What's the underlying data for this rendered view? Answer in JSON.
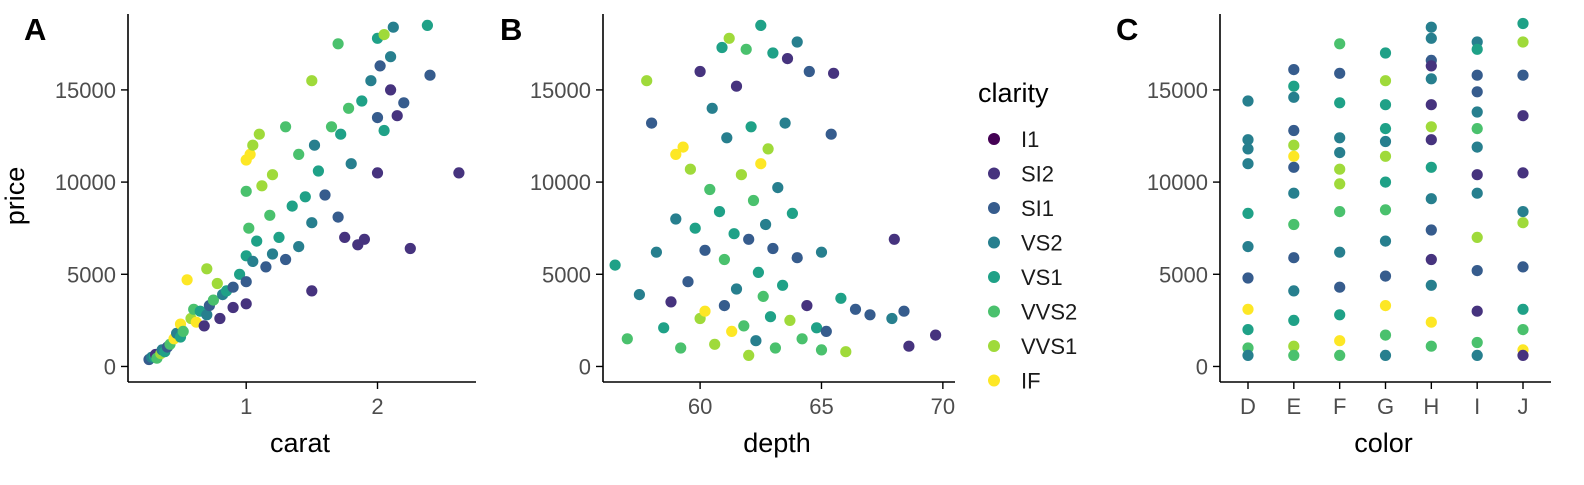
{
  "chart_data": [
    {
      "panel": "A",
      "type": "scatter",
      "xlabel": "carat",
      "ylabel": "price",
      "xticks": [
        1,
        2
      ],
      "yticks": [
        0,
        5000,
        10000,
        15000
      ],
      "xlim": [
        0.1,
        2.75
      ],
      "ylim": [
        -300,
        18900
      ],
      "points": [
        [
          0.26,
          380,
          2
        ],
        [
          0.28,
          500,
          3
        ],
        [
          0.3,
          520,
          4
        ],
        [
          0.31,
          650,
          1
        ],
        [
          0.32,
          450,
          5
        ],
        [
          0.35,
          700,
          6
        ],
        [
          0.36,
          900,
          3
        ],
        [
          0.38,
          800,
          4
        ],
        [
          0.4,
          1050,
          2
        ],
        [
          0.42,
          1200,
          5
        ],
        [
          0.45,
          1500,
          7
        ],
        [
          0.47,
          1800,
          3
        ],
        [
          0.5,
          2300,
          7
        ],
        [
          0.5,
          1600,
          4
        ],
        [
          0.52,
          1900,
          5
        ],
        [
          0.55,
          4700,
          7
        ],
        [
          0.58,
          2600,
          6
        ],
        [
          0.6,
          3100,
          5
        ],
        [
          0.62,
          2400,
          7
        ],
        [
          0.65,
          3000,
          4
        ],
        [
          0.68,
          2200,
          1
        ],
        [
          0.7,
          2800,
          3
        ],
        [
          0.7,
          5300,
          6
        ],
        [
          0.72,
          3300,
          2
        ],
        [
          0.75,
          3600,
          5
        ],
        [
          0.78,
          4500,
          6
        ],
        [
          0.8,
          2600,
          1
        ],
        [
          0.82,
          3900,
          3
        ],
        [
          0.85,
          4100,
          4
        ],
        [
          0.9,
          4300,
          2
        ],
        [
          0.9,
          3200,
          1
        ],
        [
          0.95,
          5000,
          4
        ],
        [
          1.0,
          4600,
          2
        ],
        [
          1.0,
          6000,
          4
        ],
        [
          1.0,
          9500,
          5
        ],
        [
          1.0,
          11200,
          7
        ],
        [
          1.0,
          3400,
          1
        ],
        [
          1.02,
          7500,
          5
        ],
        [
          1.03,
          11500,
          7
        ],
        [
          1.05,
          12000,
          6
        ],
        [
          1.05,
          5700,
          3
        ],
        [
          1.08,
          6800,
          4
        ],
        [
          1.1,
          12600,
          6
        ],
        [
          1.12,
          9800,
          6
        ],
        [
          1.15,
          5400,
          2
        ],
        [
          1.18,
          8200,
          5
        ],
        [
          1.2,
          6100,
          3
        ],
        [
          1.2,
          10400,
          6
        ],
        [
          1.25,
          7000,
          4
        ],
        [
          1.3,
          13000,
          5
        ],
        [
          1.3,
          5800,
          2
        ],
        [
          1.35,
          8700,
          4
        ],
        [
          1.4,
          6500,
          3
        ],
        [
          1.4,
          11500,
          5
        ],
        [
          1.45,
          9200,
          4
        ],
        [
          1.5,
          15500,
          6
        ],
        [
          1.5,
          7800,
          3
        ],
        [
          1.5,
          4100,
          1
        ],
        [
          1.52,
          12000,
          3
        ],
        [
          1.55,
          10600,
          4
        ],
        [
          1.6,
          9300,
          2
        ],
        [
          1.65,
          13000,
          5
        ],
        [
          1.7,
          8100,
          2
        ],
        [
          1.7,
          17500,
          5
        ],
        [
          1.72,
          12600,
          4
        ],
        [
          1.75,
          7000,
          1
        ],
        [
          1.78,
          14000,
          5
        ],
        [
          1.8,
          11000,
          3
        ],
        [
          1.85,
          6600,
          1
        ],
        [
          1.88,
          14400,
          4
        ],
        [
          1.9,
          6900,
          1
        ],
        [
          1.95,
          15500,
          3
        ],
        [
          2.0,
          17800,
          4
        ],
        [
          2.0,
          13500,
          2
        ],
        [
          2.0,
          10500,
          1
        ],
        [
          2.02,
          16300,
          2
        ],
        [
          2.05,
          18000,
          6
        ],
        [
          2.05,
          12800,
          4
        ],
        [
          2.1,
          15000,
          1
        ],
        [
          2.1,
          16800,
          3
        ],
        [
          2.12,
          18400,
          3
        ],
        [
          2.15,
          13600,
          1
        ],
        [
          2.2,
          14300,
          2
        ],
        [
          2.25,
          6400,
          1
        ],
        [
          2.38,
          18500,
          4
        ],
        [
          2.4,
          15800,
          2
        ],
        [
          2.62,
          10500,
          1
        ]
      ]
    },
    {
      "panel": "B",
      "type": "scatter",
      "xlabel": "depth",
      "ylabel": "",
      "xticks": [
        60,
        65,
        70
      ],
      "yticks": [
        0,
        5000,
        10000,
        15000
      ],
      "xlim": [
        56.0,
        70.5
      ],
      "ylim": [
        -300,
        18900
      ],
      "points": [
        [
          56.5,
          5500,
          4
        ],
        [
          57.0,
          1500,
          5
        ],
        [
          57.5,
          3900,
          3
        ],
        [
          57.8,
          15500,
          6
        ],
        [
          58.0,
          13200,
          2
        ],
        [
          58.2,
          6200,
          3
        ],
        [
          58.5,
          2100,
          4
        ],
        [
          58.8,
          3500,
          1
        ],
        [
          59.0,
          8000,
          3
        ],
        [
          59.0,
          11500,
          7
        ],
        [
          59.2,
          1000,
          5
        ],
        [
          59.3,
          11900,
          7
        ],
        [
          59.5,
          4600,
          2
        ],
        [
          59.6,
          10700,
          6
        ],
        [
          59.8,
          7500,
          4
        ],
        [
          60.0,
          2600,
          6
        ],
        [
          60.0,
          16000,
          1
        ],
        [
          60.2,
          6300,
          2
        ],
        [
          60.2,
          3000,
          7
        ],
        [
          60.4,
          9600,
          5
        ],
        [
          60.5,
          14000,
          3
        ],
        [
          60.6,
          1200,
          6
        ],
        [
          60.8,
          8400,
          4
        ],
        [
          60.9,
          17300,
          4
        ],
        [
          61.0,
          3300,
          2
        ],
        [
          61.0,
          5800,
          5
        ],
        [
          61.1,
          12400,
          3
        ],
        [
          61.2,
          17800,
          6
        ],
        [
          61.3,
          1900,
          7
        ],
        [
          61.4,
          7200,
          4
        ],
        [
          61.5,
          15200,
          1
        ],
        [
          61.5,
          4200,
          3
        ],
        [
          61.7,
          10400,
          6
        ],
        [
          61.8,
          2200,
          5
        ],
        [
          61.9,
          17200,
          5
        ],
        [
          62.0,
          600,
          6
        ],
        [
          62.0,
          6900,
          2
        ],
        [
          62.1,
          13000,
          4
        ],
        [
          62.2,
          9000,
          5
        ],
        [
          62.3,
          1400,
          3
        ],
        [
          62.4,
          5100,
          4
        ],
        [
          62.5,
          18500,
          4
        ],
        [
          62.5,
          11000,
          7
        ],
        [
          62.6,
          3800,
          5
        ],
        [
          62.7,
          7700,
          3
        ],
        [
          62.8,
          11800,
          6
        ],
        [
          62.9,
          2700,
          4
        ],
        [
          63.0,
          17000,
          4
        ],
        [
          63.0,
          6400,
          2
        ],
        [
          63.1,
          1000,
          5
        ],
        [
          63.2,
          9700,
          3
        ],
        [
          63.4,
          4400,
          4
        ],
        [
          63.5,
          13200,
          3
        ],
        [
          63.6,
          16700,
          1
        ],
        [
          63.7,
          2500,
          6
        ],
        [
          63.8,
          8300,
          4
        ],
        [
          64.0,
          17600,
          3
        ],
        [
          64.0,
          5900,
          2
        ],
        [
          64.2,
          1500,
          5
        ],
        [
          64.4,
          3300,
          1
        ],
        [
          64.5,
          16000,
          2
        ],
        [
          64.8,
          2100,
          4
        ],
        [
          65.0,
          6200,
          3
        ],
        [
          65.0,
          900,
          5
        ],
        [
          65.2,
          1900,
          2
        ],
        [
          65.4,
          12600,
          2
        ],
        [
          65.5,
          15900,
          1
        ],
        [
          65.8,
          3700,
          4
        ],
        [
          66.0,
          800,
          6
        ],
        [
          66.4,
          3100,
          2
        ],
        [
          67.0,
          2800,
          2
        ],
        [
          67.9,
          2600,
          3
        ],
        [
          68.0,
          6900,
          1
        ],
        [
          68.4,
          3000,
          2
        ],
        [
          68.6,
          1100,
          1
        ],
        [
          69.7,
          1700,
          1
        ]
      ]
    },
    {
      "panel": "C",
      "type": "scatter",
      "xlabel": "color",
      "ylabel": "",
      "categories": [
        "D",
        "E",
        "F",
        "G",
        "H",
        "I",
        "J"
      ],
      "yticks": [
        0,
        5000,
        10000,
        15000
      ],
      "ylim": [
        -300,
        18900
      ],
      "points": [
        [
          0,
          14400,
          3
        ],
        [
          0,
          12300,
          3
        ],
        [
          0,
          11800,
          3
        ],
        [
          0,
          11000,
          3
        ],
        [
          0,
          8300,
          4
        ],
        [
          0,
          6500,
          3
        ],
        [
          0,
          4800,
          2
        ],
        [
          0,
          3100,
          7
        ],
        [
          0,
          2000,
          4
        ],
        [
          0,
          1000,
          5
        ],
        [
          0,
          600,
          3
        ],
        [
          1,
          16100,
          2
        ],
        [
          1,
          15200,
          4
        ],
        [
          1,
          14600,
          3
        ],
        [
          1,
          12800,
          2
        ],
        [
          1,
          12000,
          6
        ],
        [
          1,
          11400,
          7
        ],
        [
          1,
          10800,
          2
        ],
        [
          1,
          9400,
          3
        ],
        [
          1,
          7700,
          5
        ],
        [
          1,
          5900,
          2
        ],
        [
          1,
          4100,
          3
        ],
        [
          1,
          2500,
          4
        ],
        [
          1,
          1100,
          6
        ],
        [
          1,
          600,
          5
        ],
        [
          2,
          17500,
          5
        ],
        [
          2,
          15900,
          2
        ],
        [
          2,
          14300,
          4
        ],
        [
          2,
          12400,
          3
        ],
        [
          2,
          11600,
          3
        ],
        [
          2,
          10700,
          6
        ],
        [
          2,
          9900,
          6
        ],
        [
          2,
          8400,
          5
        ],
        [
          2,
          6200,
          3
        ],
        [
          2,
          4300,
          2
        ],
        [
          2,
          2800,
          4
        ],
        [
          2,
          1400,
          7
        ],
        [
          2,
          600,
          5
        ],
        [
          3,
          17000,
          4
        ],
        [
          3,
          15500,
          6
        ],
        [
          3,
          14200,
          4
        ],
        [
          3,
          12900,
          4
        ],
        [
          3,
          12200,
          3
        ],
        [
          3,
          11400,
          6
        ],
        [
          3,
          10000,
          4
        ],
        [
          3,
          8500,
          5
        ],
        [
          3,
          6800,
          3
        ],
        [
          3,
          4900,
          2
        ],
        [
          3,
          3300,
          7
        ],
        [
          3,
          1700,
          5
        ],
        [
          3,
          600,
          3
        ],
        [
          4,
          18400,
          3
        ],
        [
          4,
          17800,
          3
        ],
        [
          4,
          16600,
          2
        ],
        [
          4,
          16300,
          1
        ],
        [
          4,
          15600,
          3
        ],
        [
          4,
          14200,
          1
        ],
        [
          4,
          13000,
          6
        ],
        [
          4,
          12300,
          1
        ],
        [
          4,
          10800,
          4
        ],
        [
          4,
          9100,
          3
        ],
        [
          4,
          7400,
          2
        ],
        [
          4,
          5800,
          1
        ],
        [
          4,
          4400,
          3
        ],
        [
          4,
          2400,
          7
        ],
        [
          4,
          1100,
          5
        ],
        [
          5,
          17600,
          3
        ],
        [
          5,
          17200,
          4
        ],
        [
          5,
          15800,
          2
        ],
        [
          5,
          14900,
          2
        ],
        [
          5,
          13800,
          3
        ],
        [
          5,
          12900,
          5
        ],
        [
          5,
          11900,
          3
        ],
        [
          5,
          10400,
          1
        ],
        [
          5,
          9400,
          3
        ],
        [
          5,
          7000,
          6
        ],
        [
          5,
          5200,
          2
        ],
        [
          5,
          3000,
          1
        ],
        [
          5,
          1300,
          5
        ],
        [
          5,
          600,
          3
        ],
        [
          6,
          18600,
          4
        ],
        [
          6,
          17600,
          6
        ],
        [
          6,
          15800,
          2
        ],
        [
          6,
          13600,
          1
        ],
        [
          6,
          10500,
          1
        ],
        [
          6,
          8400,
          3
        ],
        [
          6,
          7800,
          6
        ],
        [
          6,
          5400,
          2
        ],
        [
          6,
          3100,
          4
        ],
        [
          6,
          2000,
          5
        ],
        [
          6,
          900,
          7
        ],
        [
          6,
          600,
          1
        ]
      ]
    }
  ],
  "legend": {
    "title": "clarity",
    "placement": "right of panel B",
    "entries": [
      {
        "label": "I1",
        "color": "#440154"
      },
      {
        "label": "SI2",
        "color": "#46337E"
      },
      {
        "label": "SI1",
        "color": "#365C8D"
      },
      {
        "label": "VS2",
        "color": "#277F8E"
      },
      {
        "label": "VS1",
        "color": "#1FA187"
      },
      {
        "label": "VVS2",
        "color": "#4AC16D"
      },
      {
        "label": "VVS1",
        "color": "#9FDA3A"
      },
      {
        "label": "IF",
        "color": "#FDE725"
      }
    ]
  }
}
